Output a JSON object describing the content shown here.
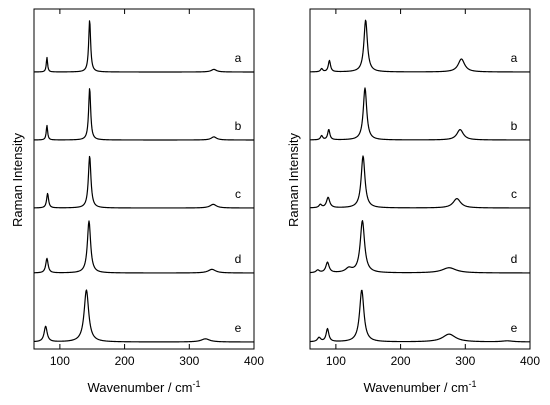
{
  "chart_data": [
    {
      "type": "line",
      "panel": "left",
      "xlabel": "Wavenumber / cm",
      "xlabel_sup": "-1",
      "ylabel": "Raman Intensity",
      "xlim": [
        60,
        400
      ],
      "xticks": [
        100,
        200,
        300,
        400
      ],
      "series": [
        {
          "name": "a",
          "peaks": [
            {
              "x": 80,
              "h": 0.28,
              "w": 1.2
            },
            {
              "x": 146,
              "h": 1.0,
              "w": 1.8
            },
            {
              "x": 338,
              "h": 0.05,
              "w": 5
            }
          ]
        },
        {
          "name": "b",
          "peaks": [
            {
              "x": 80,
              "h": 0.28,
              "w": 1.3
            },
            {
              "x": 146,
              "h": 1.0,
              "w": 1.9
            },
            {
              "x": 338,
              "h": 0.06,
              "w": 5
            }
          ]
        },
        {
          "name": "c",
          "peaks": [
            {
              "x": 81,
              "h": 0.28,
              "w": 1.8
            },
            {
              "x": 146,
              "h": 1.0,
              "w": 2.4
            },
            {
              "x": 337,
              "h": 0.07,
              "w": 6
            }
          ]
        },
        {
          "name": "d",
          "peaks": [
            {
              "x": 80,
              "h": 0.28,
              "w": 2.2
            },
            {
              "x": 145,
              "h": 1.0,
              "w": 3.0
            },
            {
              "x": 335,
              "h": 0.07,
              "w": 7
            }
          ]
        },
        {
          "name": "e",
          "peaks": [
            {
              "x": 78,
              "h": 0.3,
              "w": 2.8
            },
            {
              "x": 141,
              "h": 1.0,
              "w": 4.2
            },
            {
              "x": 325,
              "h": 0.06,
              "w": 8
            }
          ]
        }
      ]
    },
    {
      "type": "line",
      "panel": "right",
      "xlabel": "Wavenumber / cm",
      "xlabel_sup": "-1",
      "ylabel": "Raman Intensity",
      "xlim": [
        60,
        400
      ],
      "xticks": [
        100,
        200,
        300,
        400
      ],
      "series": [
        {
          "name": "a",
          "peaks": [
            {
              "x": 78,
              "h": 0.06,
              "w": 2
            },
            {
              "x": 90,
              "h": 0.22,
              "w": 2
            },
            {
              "x": 146,
              "h": 1.0,
              "w": 3.2
            },
            {
              "x": 294,
              "h": 0.25,
              "w": 6
            }
          ]
        },
        {
          "name": "b",
          "peaks": [
            {
              "x": 78,
              "h": 0.08,
              "w": 2
            },
            {
              "x": 89,
              "h": 0.2,
              "w": 2
            },
            {
              "x": 145,
              "h": 1.0,
              "w": 3.2
            },
            {
              "x": 292,
              "h": 0.2,
              "w": 6
            }
          ]
        },
        {
          "name": "c",
          "peaks": [
            {
              "x": 76,
              "h": 0.06,
              "w": 2.5
            },
            {
              "x": 88,
              "h": 0.2,
              "w": 3
            },
            {
              "x": 142,
              "h": 1.0,
              "w": 3.5
            },
            {
              "x": 287,
              "h": 0.18,
              "w": 7
            }
          ]
        },
        {
          "name": "d",
          "peaks": [
            {
              "x": 72,
              "h": 0.05,
              "w": 3
            },
            {
              "x": 87,
              "h": 0.2,
              "w": 3
            },
            {
              "x": 120,
              "h": 0.08,
              "w": 6
            },
            {
              "x": 141,
              "h": 1.0,
              "w": 4
            },
            {
              "x": 275,
              "h": 0.1,
              "w": 13
            }
          ]
        },
        {
          "name": "e",
          "peaks": [
            {
              "x": 74,
              "h": 0.08,
              "w": 3
            },
            {
              "x": 87,
              "h": 0.25,
              "w": 2.5
            },
            {
              "x": 140,
              "h": 1.0,
              "w": 4
            },
            {
              "x": 275,
              "h": 0.15,
              "w": 12
            },
            {
              "x": 365,
              "h": 0.02,
              "w": 10
            }
          ]
        }
      ]
    }
  ]
}
